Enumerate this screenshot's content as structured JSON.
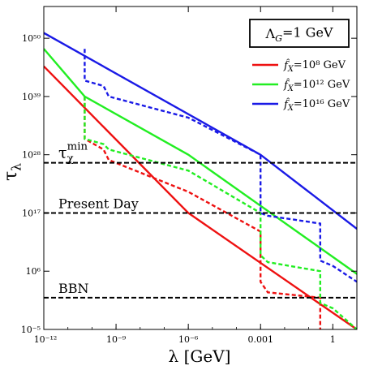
{
  "chart_data": {
    "type": "line",
    "xlabel": "λ [GeV]",
    "ylabel": "τ_λ",
    "x_scale": "log",
    "y_scale": "log",
    "xlim": [
      1e-12,
      10
    ],
    "ylim": [
      1e-05,
      1e+56
    ],
    "x_ticks": [
      {
        "value": 1e-12,
        "label": "10⁻¹²"
      },
      {
        "value": 1e-09,
        "label": "10⁻⁹"
      },
      {
        "value": 1e-06,
        "label": "10⁻⁶"
      },
      {
        "value": 0.001,
        "label": "0.001"
      },
      {
        "value": 1,
        "label": "1"
      }
    ],
    "y_ticks": [
      {
        "value": 1e-05,
        "label": "10⁻⁵"
      },
      {
        "value": 1000000.0,
        "label": "10⁶"
      },
      {
        "value": 1e+17,
        "label": "10¹⁷"
      },
      {
        "value": 1e+28,
        "label": "10²⁸"
      },
      {
        "value": 1e+39,
        "label": "10³⁹"
      },
      {
        "value": 1e+50,
        "label": "10⁵⁰"
      }
    ],
    "annotation_box": "Λ_G=1 GeV",
    "legend_position": "top-right",
    "reference_lines": [
      {
        "label": "τ_χ^min",
        "y": 3e+26
      },
      {
        "label": "Present Day",
        "y": 1e+17
      },
      {
        "label": "BBN",
        "y": 10.0
      }
    ],
    "series": [
      {
        "name": "f̂_X=10⁸ GeV",
        "color": "#ee1111",
        "solid": [
          [
            1e-12,
            5e+44
          ],
          [
            1e-06,
            1e+17
          ],
          [
            10,
            1e-05
          ]
        ],
        "dashed": [
          [
            5e-11,
            1e+39
          ],
          [
            5e-11,
            1e+31
          ],
          [
            3e-10,
            1e+29
          ],
          [
            5e-10,
            1e+27
          ],
          [
            1e-06,
            1e+21
          ],
          [
            0.001,
            30000000000000.0
          ],
          [
            0.001,
            10000.0
          ],
          [
            0.002,
            100.0
          ],
          [
            0.3,
            10.0
          ],
          [
            0.3,
            1e-05
          ]
        ]
      },
      {
        "name": "f̂_X=10¹² GeV",
        "color": "#22ee22",
        "solid": [
          [
            1e-12,
            1e+48
          ],
          [
            5e-11,
            1e+39
          ],
          [
            1e-06,
            1e+28
          ],
          [
            10,
            300000.0
          ]
        ],
        "dashed": [
          [
            5e-11,
            1e+39
          ],
          [
            5e-11,
            1e+31
          ],
          [
            3e-10,
            1e+30
          ],
          [
            5e-10,
            1e+29
          ],
          [
            1e-06,
            1e+25
          ],
          [
            0.001,
            1e+17
          ],
          [
            0.001,
            1000000000.0
          ],
          [
            0.002,
            50000000.0
          ],
          [
            0.3,
            1000000.0
          ],
          [
            0.3,
            1.0
          ],
          [
            1,
            0.1
          ],
          [
            10,
            1e-05
          ]
        ]
      },
      {
        "name": "f̂_X=10¹⁶ GeV",
        "color": "#1a1ae6",
        "solid": [
          [
            1e-12,
            1e+51
          ],
          [
            0.001,
            1e+28
          ],
          [
            10,
            100000000000000.0
          ]
        ],
        "dashed": [
          [
            5e-11,
            1e+48
          ],
          [
            5e-11,
            1e+42
          ],
          [
            3e-10,
            1e+41
          ],
          [
            5e-10,
            1e+39
          ],
          [
            1e-06,
            1e+35
          ],
          [
            0.001,
            1e+28
          ],
          [
            0.001,
            1e+17
          ],
          [
            0.002,
            3e+16
          ],
          [
            0.3,
            1000000000000000.0
          ],
          [
            0.3,
            100000000.0
          ],
          [
            1,
            10000000.0
          ],
          [
            10,
            10000.0
          ]
        ]
      }
    ]
  }
}
